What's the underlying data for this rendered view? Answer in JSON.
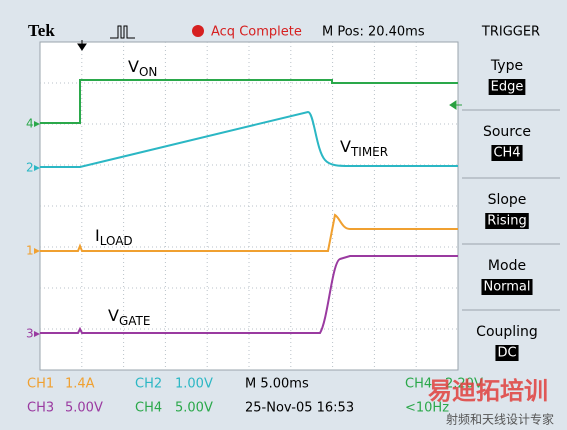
{
  "header": {
    "brand": "Tek",
    "status": "Acq Complete",
    "position": "M Pos: 20.40ms"
  },
  "trigger_menu": {
    "title": "TRIGGER",
    "items": [
      {
        "label": "Type",
        "value": "Edge"
      },
      {
        "label": "Source",
        "value": "CH4"
      },
      {
        "label": "Slope",
        "value": "Rising"
      },
      {
        "label": "Mode",
        "value": "Normal"
      },
      {
        "label": "Coupling",
        "value": "DC"
      }
    ]
  },
  "waveform_labels": [
    {
      "main": "V",
      "sub": "ON"
    },
    {
      "main": "V",
      "sub": "TIMER"
    },
    {
      "main": "I",
      "sub": "LOAD"
    },
    {
      "main": "V",
      "sub": "GATE"
    }
  ],
  "channel_markers": [
    "4",
    "2",
    "1",
    "3"
  ],
  "footer": {
    "row1": [
      "CH1",
      "1.4A",
      "CH2",
      "1.00V",
      "M 5.00ms",
      "CH4",
      "2.20V"
    ],
    "row2": [
      "CH3",
      "5.00V",
      "CH4",
      "5.00V",
      "25-Nov-05 16:53",
      "<10Hz"
    ]
  },
  "watermark": {
    "title": "易迪拓培训",
    "subtitle": "射频和天线设计专家"
  }
}
